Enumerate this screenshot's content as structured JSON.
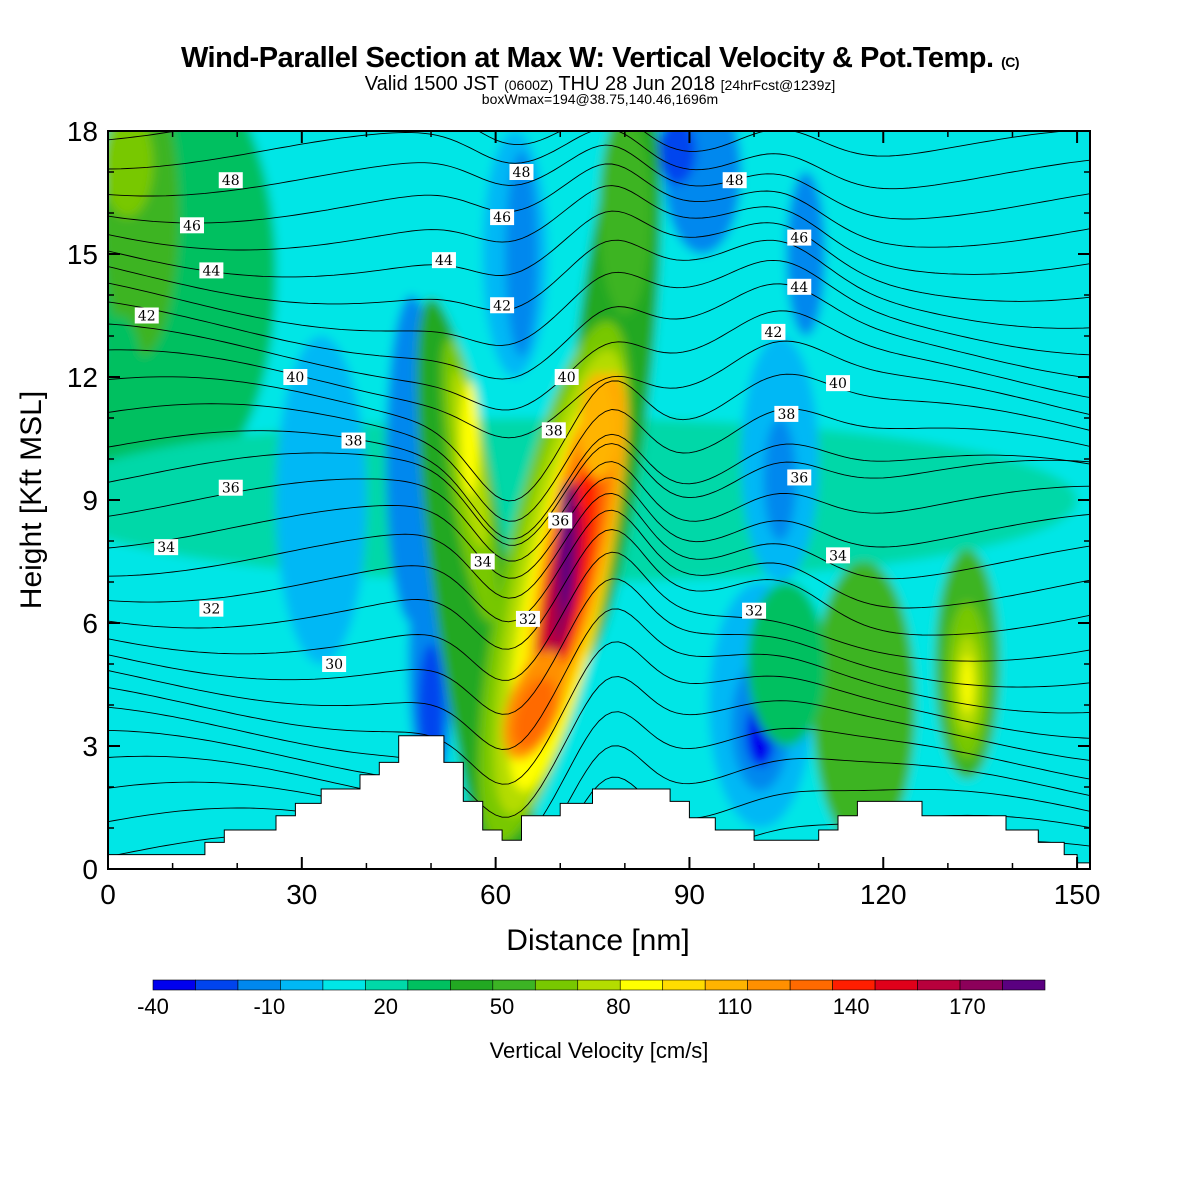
{
  "header": {
    "title_main": "Wind-Parallel Section at Max W: Vertical Velocity & Pot.Temp.",
    "copyright_mark": "(C)",
    "valid_a": "Valid 1500 JST",
    "valid_b": "(0600Z)",
    "valid_c": "THU 28 Jun 2018",
    "valid_d": "[24hrFcst@1239z]",
    "box_info": "boxWmax=194@38.75,140.46,1696m"
  },
  "chart_data": {
    "type": "heatmap",
    "xlabel": "Distance [nm]",
    "ylabel": "Height [Kft MSL]",
    "xlim": [
      0,
      152
    ],
    "ylim": [
      0,
      18
    ],
    "x_ticks": [
      0,
      30,
      60,
      90,
      120,
      150
    ],
    "y_ticks": [
      0,
      3,
      6,
      9,
      12,
      15,
      18
    ],
    "colorbar": {
      "label": "Vertical Velocity [cm/s]",
      "tick_labels": [
        "-40",
        "-10",
        "20",
        "50",
        "80",
        "110",
        "140",
        "170"
      ],
      "tick_values": [
        -40,
        -10,
        20,
        50,
        80,
        110,
        140,
        170
      ],
      "range": [
        -40,
        190
      ],
      "step": 10,
      "colors": [
        "#0000ee",
        "#0044ee",
        "#0088ee",
        "#00b8f5",
        "#00e6e6",
        "#00d8a8",
        "#00c060",
        "#22a822",
        "#3cb424",
        "#78c800",
        "#b4dc00",
        "#ffff00",
        "#ffdc00",
        "#ffb400",
        "#ff9000",
        "#ff6a00",
        "#ff1e00",
        "#e0001a",
        "#b8003c",
        "#8c005a",
        "#5a0080"
      ]
    },
    "terrain_kft": [
      [
        0,
        0.35
      ],
      [
        15,
        0.35
      ],
      [
        15,
        0.65
      ],
      [
        18,
        0.65
      ],
      [
        18,
        0.95
      ],
      [
        26,
        0.95
      ],
      [
        26,
        1.3
      ],
      [
        29,
        1.3
      ],
      [
        29,
        1.6
      ],
      [
        33,
        1.6
      ],
      [
        33,
        1.95
      ],
      [
        39,
        1.95
      ],
      [
        39,
        2.3
      ],
      [
        42,
        2.3
      ],
      [
        42,
        2.6
      ],
      [
        45,
        2.6
      ],
      [
        45,
        3.25
      ],
      [
        52,
        3.25
      ],
      [
        52,
        2.6
      ],
      [
        55,
        2.6
      ],
      [
        55,
        1.65
      ],
      [
        58,
        1.65
      ],
      [
        58,
        0.95
      ],
      [
        61,
        0.95
      ],
      [
        61,
        0.7
      ],
      [
        64,
        0.7
      ],
      [
        64,
        1.3
      ],
      [
        70,
        1.3
      ],
      [
        70,
        1.6
      ],
      [
        75,
        1.6
      ],
      [
        75,
        1.95
      ],
      [
        87,
        1.95
      ],
      [
        87,
        1.65
      ],
      [
        90,
        1.65
      ],
      [
        90,
        1.25
      ],
      [
        94,
        1.25
      ],
      [
        94,
        0.95
      ],
      [
        100,
        0.95
      ],
      [
        100,
        0.7
      ],
      [
        110,
        0.7
      ],
      [
        110,
        0.95
      ],
      [
        113,
        0.95
      ],
      [
        113,
        1.3
      ],
      [
        116,
        1.3
      ],
      [
        116,
        1.65
      ],
      [
        126,
        1.65
      ],
      [
        126,
        1.3
      ],
      [
        139,
        1.3
      ],
      [
        139,
        0.95
      ],
      [
        144,
        0.95
      ],
      [
        144,
        0.65
      ],
      [
        148,
        0.65
      ],
      [
        148,
        0.35
      ],
      [
        150,
        0.35
      ],
      [
        150,
        0.15
      ],
      [
        152,
        0.15
      ]
    ],
    "theta_lines": [
      {
        "label": "30",
        "label_pos": [
          35,
          5.0
        ]
      },
      {
        "label": "32",
        "label_pos": [
          16,
          6.35
        ]
      },
      {
        "label": "32",
        "label_pos": [
          65,
          6.1
        ]
      },
      {
        "label": "32",
        "label_pos": [
          100,
          6.3
        ]
      },
      {
        "label": "34",
        "label_pos": [
          9,
          7.85
        ]
      },
      {
        "label": "34",
        "label_pos": [
          58,
          7.5
        ]
      },
      {
        "label": "34",
        "label_pos": [
          113,
          7.65
        ]
      },
      {
        "label": "36",
        "label_pos": [
          19,
          9.3
        ]
      },
      {
        "label": "36",
        "label_pos": [
          70,
          8.5
        ]
      },
      {
        "label": "36",
        "label_pos": [
          107,
          9.55
        ]
      },
      {
        "label": "38",
        "label_pos": [
          38,
          10.45
        ]
      },
      {
        "label": "38",
        "label_pos": [
          69,
          10.7
        ]
      },
      {
        "label": "38",
        "label_pos": [
          105,
          11.1
        ]
      },
      {
        "label": "40",
        "label_pos": [
          29,
          12.0
        ]
      },
      {
        "label": "40",
        "label_pos": [
          71,
          12.0
        ]
      },
      {
        "label": "40",
        "label_pos": [
          113,
          11.85
        ]
      },
      {
        "label": "42",
        "label_pos": [
          6,
          13.5
        ]
      },
      {
        "label": "42",
        "label_pos": [
          61,
          13.75
        ]
      },
      {
        "label": "42",
        "label_pos": [
          103,
          13.1
        ]
      },
      {
        "label": "44",
        "label_pos": [
          16,
          14.6
        ]
      },
      {
        "label": "44",
        "label_pos": [
          52,
          14.85
        ]
      },
      {
        "label": "44",
        "label_pos": [
          107,
          14.2
        ]
      },
      {
        "label": "46",
        "label_pos": [
          13,
          15.7
        ]
      },
      {
        "label": "46",
        "label_pos": [
          61,
          15.9
        ]
      },
      {
        "label": "46",
        "label_pos": [
          107,
          15.4
        ]
      },
      {
        "label": "48",
        "label_pos": [
          19,
          16.8
        ]
      },
      {
        "label": "48",
        "label_pos": [
          64,
          17.0
        ]
      },
      {
        "label": "48",
        "label_pos": [
          97,
          16.8
        ]
      }
    ]
  }
}
